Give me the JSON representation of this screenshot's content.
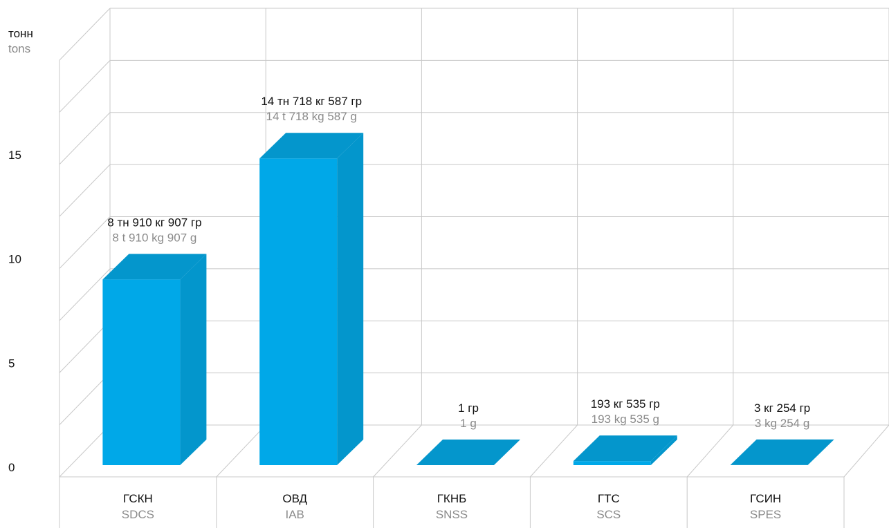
{
  "chart_data": {
    "type": "bar",
    "style": "3d",
    "y_unit_ru": "тонн",
    "y_unit_en": "tons",
    "ylim": [
      0,
      20
    ],
    "yticks": [
      0,
      5,
      10,
      15
    ],
    "grid": true,
    "bar_color": "#00a8e8",
    "bar_top_color": "#0496cc",
    "bar_side_color": "#0396cc",
    "categories": [
      {
        "ru": "ГСКН",
        "en": "SDCS"
      },
      {
        "ru": "ОВД",
        "en": "IAB"
      },
      {
        "ru": "ГКНБ",
        "en": "SNSS"
      },
      {
        "ru": "ГТС",
        "en": "SCS"
      },
      {
        "ru": "ГСИН",
        "en": "SPES"
      }
    ],
    "values": [
      8.910907,
      14.718587,
      1e-06,
      0.193535,
      0.003254
    ],
    "data_labels": [
      {
        "ru": "8 тн 910 кг 907 гр",
        "en": "8 t 910 kg 907 g"
      },
      {
        "ru": "14 тн 718 кг 587 гр",
        "en": "14 t 718 kg 587 g"
      },
      {
        "ru": "1 гр",
        "en": "1 g"
      },
      {
        "ru": "193 кг 535 гр",
        "en": "193 kg 535 g"
      },
      {
        "ru": "3 кг 254 гр",
        "en": "3 kg 254 g"
      }
    ]
  }
}
